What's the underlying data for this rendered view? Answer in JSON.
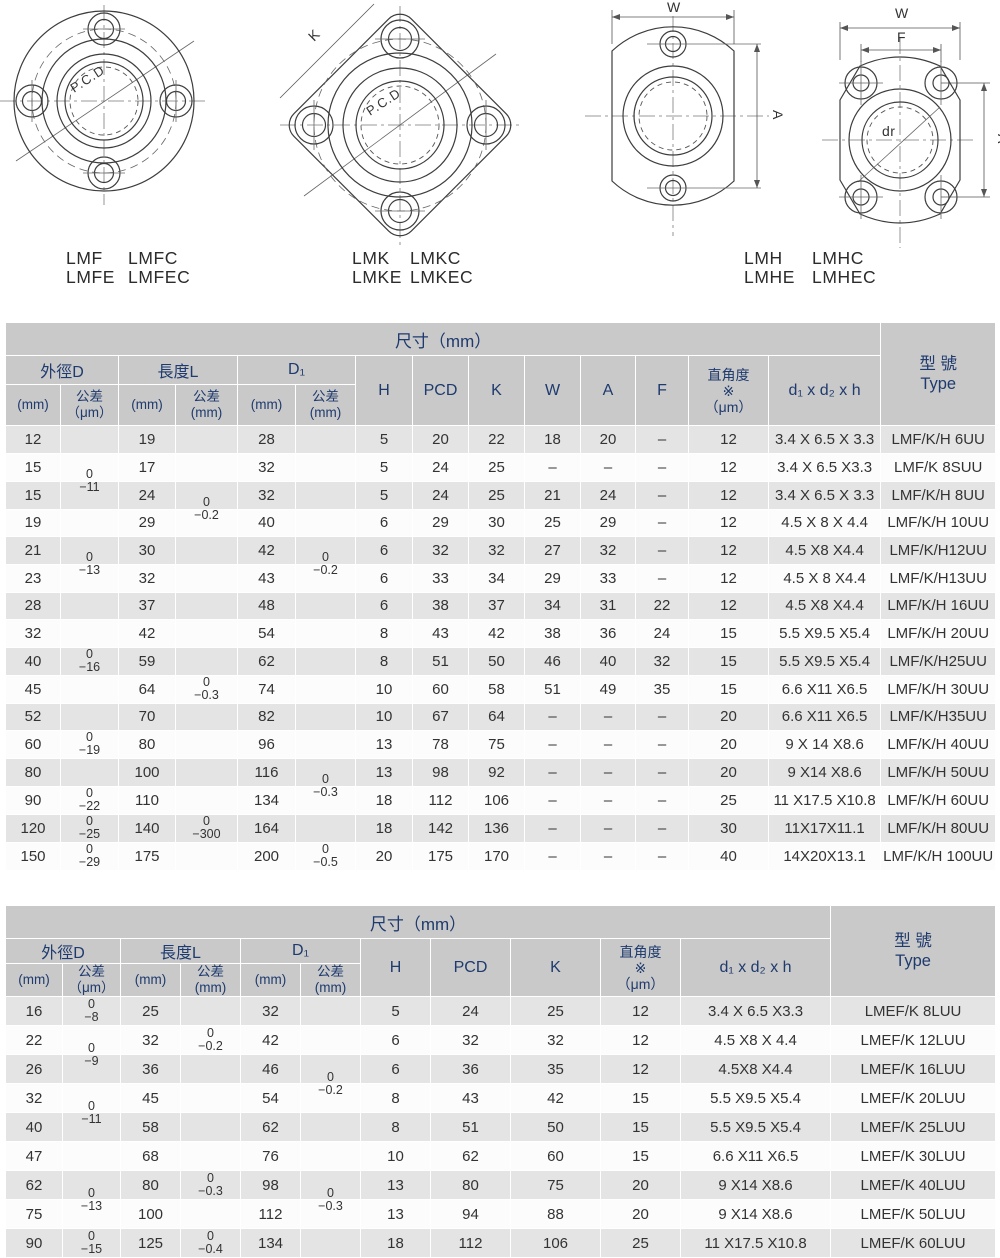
{
  "drawings": {
    "pcd_label": "P.C.D",
    "dr_label": "dr",
    "dim_w": "W",
    "dim_a": "A",
    "dim_f": "F",
    "dim_k": "K",
    "groups": [
      {
        "col1": [
          "LMF",
          "LMFE"
        ],
        "col2": [
          "LMFC",
          "LMFEC"
        ]
      },
      {
        "col1": [
          "LMK",
          "LMKE"
        ],
        "col2": [
          "LMKC",
          "LMKEC"
        ]
      },
      {
        "col1": [
          "LMH",
          "LMHE"
        ],
        "col2": [
          "LMHC",
          "LMHEC"
        ]
      }
    ]
  },
  "colors": {
    "header_bg": "#c9c9c9",
    "header_text": "#1e3a6e",
    "row_gray": "#e4e4e4",
    "row_white": "#fcfcfc"
  },
  "table1": {
    "title": "尺寸（mm）",
    "type_header": "型 號\nType",
    "groups": {
      "d": "外徑D",
      "l": "長度L",
      "d1": "D₁"
    },
    "sub": {
      "mm": "(mm)",
      "tol_um": "公差\n（μm）",
      "tol_mm": "公差\n(mm)"
    },
    "cols": {
      "h": "H",
      "pcd": "PCD",
      "k": "K",
      "w": "W",
      "a": "A",
      "f": "F",
      "sq": "直角度\n※\n（μm）",
      "screw": "d₁ x d₂ x h"
    },
    "rows": [
      [
        "12",
        "",
        "19",
        "",
        "28",
        "",
        "5",
        "20",
        "22",
        "18",
        "20",
        "–",
        "12",
        "3.4 X 6.5 X 3.3",
        "LMF/K/H 6UU"
      ],
      [
        "15",
        {
          "t": "0\n−11",
          "sh": 1
        },
        "17",
        "",
        "32",
        "",
        "5",
        "24",
        "25",
        "–",
        "–",
        "–",
        "12",
        "3.4 X 6.5 X3.3",
        "LMF/K 8SUU"
      ],
      [
        "15",
        "",
        "24",
        {
          "t": "0\n−0.2",
          "sh": 1
        },
        "32",
        "",
        "5",
        "24",
        "25",
        "21",
        "24",
        "–",
        "12",
        "3.4 X 6.5 X 3.3",
        "LMF/K/H 8UU"
      ],
      [
        "19",
        "",
        "29",
        "",
        "40",
        "",
        "6",
        "29",
        "30",
        "25",
        "29",
        "–",
        "12",
        "4.5 X 8 X 4.4",
        "LMF/K/H 10UU"
      ],
      [
        "21",
        {
          "t": "0\n−13",
          "sh": 1
        },
        "30",
        "",
        "42",
        {
          "t": "0\n−0.2",
          "sh": 1
        },
        "6",
        "32",
        "32",
        "27",
        "32",
        "–",
        "12",
        "4.5 X8 X4.4",
        "LMF/K/H12UU"
      ],
      [
        "23",
        "",
        "32",
        "",
        "43",
        "",
        "6",
        "33",
        "34",
        "29",
        "33",
        "–",
        "12",
        "4.5 X 8 X4.4",
        "LMF/K/H13UU"
      ],
      [
        "28",
        "",
        "37",
        "",
        "48",
        "",
        "6",
        "38",
        "37",
        "34",
        "31",
        "22",
        "12",
        "4.5 X8 X4.4",
        "LMF/K/H 16UU"
      ],
      [
        "32",
        "",
        "42",
        "",
        "54",
        "",
        "8",
        "43",
        "42",
        "38",
        "36",
        "24",
        "15",
        "5.5 X9.5 X5.4",
        "LMF/K/H 20UU"
      ],
      [
        "40",
        {
          "t": "0\n−16"
        },
        "59",
        "",
        "62",
        "",
        "8",
        "51",
        "50",
        "46",
        "40",
        "32",
        "15",
        "5.5 X9.5 X5.4",
        "LMF/K/H25UU"
      ],
      [
        "45",
        "",
        "64",
        {
          "t": "0\n−0.3"
        },
        "74",
        "",
        "10",
        "60",
        "58",
        "51",
        "49",
        "35",
        "15",
        "6.6 X11 X6.5",
        "LMF/K/H 30UU"
      ],
      [
        "52",
        "",
        "70",
        "",
        "82",
        "",
        "10",
        "67",
        "64",
        "–",
        "–",
        "–",
        "20",
        "6.6 X11 X6.5",
        "LMF/K/H35UU"
      ],
      [
        "60",
        {
          "t": "0\n−19"
        },
        "80",
        "",
        "96",
        "",
        "13",
        "78",
        "75",
        "–",
        "–",
        "–",
        "20",
        "9 X 14 X8.6",
        "LMF/K/H 40UU"
      ],
      [
        "80",
        "",
        "100",
        "",
        "116",
        {
          "t": "0\n−0.3",
          "sh": 1
        },
        "13",
        "98",
        "92",
        "–",
        "–",
        "–",
        "20",
        "9 X14 X8.6",
        "LMF/K/H 50UU"
      ],
      [
        "90",
        {
          "t": "0\n−22"
        },
        "110",
        "",
        "134",
        "",
        "18",
        "112",
        "106",
        "–",
        "–",
        "–",
        "25",
        "11 X17.5 X10.8",
        "LMF/K/H 60UU"
      ],
      [
        "120",
        {
          "t": "0\n−25"
        },
        "140",
        {
          "t": "0\n−300"
        },
        "164",
        "",
        "18",
        "142",
        "136",
        "–",
        "–",
        "–",
        "30",
        "11X17X11.1",
        "LMF/K/H 80UU"
      ],
      [
        "150",
        {
          "t": "0\n−29"
        },
        "175",
        "",
        "200",
        {
          "t": "0\n−0.5"
        },
        "20",
        "175",
        "170",
        "–",
        "–",
        "–",
        "40",
        "14X20X13.1",
        "LMF/K/H 100UU"
      ]
    ]
  },
  "table2": {
    "title": "尺寸（mm）",
    "type_header": "型 號\nType",
    "groups": {
      "d": "外徑D",
      "l": "長度L",
      "d1": "D₁"
    },
    "sub": {
      "mm": "(mm)",
      "tol_um": "公差\n（μm）",
      "tol_mm": "公差\n(mm)"
    },
    "cols": {
      "h": "H",
      "pcd": "PCD",
      "k": "K",
      "sq": "直角度\n※\n（μm）",
      "screw": "d₁ x d₂ x h"
    },
    "rows": [
      [
        "16",
        {
          "t": "0\n−8"
        },
        "25",
        "",
        "32",
        "",
        "5",
        "24",
        "25",
        "12",
        "3.4 X 6.5 X3.3",
        "LMEF/K 8LUU"
      ],
      [
        "22",
        {
          "t": "0\n−9",
          "sh": 1
        },
        "32",
        {
          "t": "0\n−0.2"
        },
        "42",
        "",
        "6",
        "32",
        "32",
        "12",
        "4.5 X8 X 4.4",
        "LMEF/K 12LUU"
      ],
      [
        "26",
        "",
        "36",
        "",
        "46",
        {
          "t": "0\n−0.2",
          "sh": 1
        },
        "6",
        "36",
        "35",
        "12",
        "4.5X8 X4.4",
        "LMEF/K 16LUU"
      ],
      [
        "32",
        {
          "t": "0\n−11",
          "sh": 1
        },
        "45",
        "",
        "54",
        "",
        "8",
        "43",
        "42",
        "15",
        "5.5 X9.5 X5.4",
        "LMEF/K 20LUU"
      ],
      [
        "40",
        "",
        "58",
        "",
        "62",
        "",
        "8",
        "51",
        "50",
        "15",
        "5.5 X9.5 X5.4",
        "LMEF/K 25LUU"
      ],
      [
        "47",
        "",
        "68",
        "",
        "76",
        "",
        "10",
        "62",
        "60",
        "15",
        "6.6 X11 X6.5",
        "LMEF/K 30LUU"
      ],
      [
        "62",
        {
          "t": "0\n−13",
          "sh": 1
        },
        "80",
        {
          "t": "0\n−0.3"
        },
        "98",
        {
          "t": "0\n−0.3",
          "sh": 1
        },
        "13",
        "80",
        "75",
        "20",
        "9 X14 X8.6",
        "LMEF/K 40LUU"
      ],
      [
        "75",
        "",
        "100",
        "",
        "112",
        "",
        "13",
        "94",
        "88",
        "20",
        "9 X14 X8.6",
        "LMEF/K 50LUU"
      ],
      [
        "90",
        {
          "t": "0\n−15"
        },
        "125",
        {
          "t": "0\n−0.4"
        },
        "134",
        "",
        "18",
        "112",
        "106",
        "25",
        "11 X17.5 X10.8",
        "LMEF/K 60LUU"
      ]
    ]
  }
}
